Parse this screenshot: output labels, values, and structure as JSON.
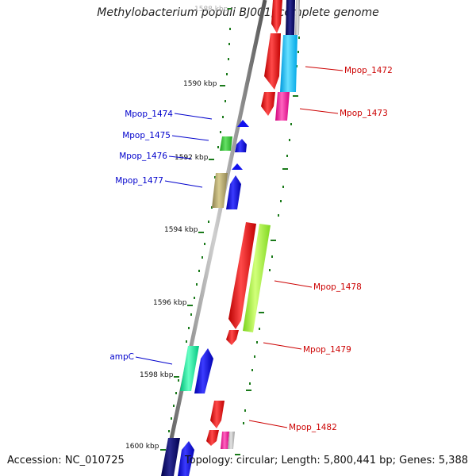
{
  "title": "Methylobacterium populi BJ001, complete genome",
  "footer": {
    "accession": "Accession: NC_010725",
    "summary": "Topology: circular; Length: 5,800,441 bp; Genes: 5,388"
  },
  "ruler_labels": [
    "1588 kbp",
    "1590 kbp",
    "1592 kbp",
    "1594 kbp",
    "1596 kbp",
    "1598 kbp",
    "1600 kbp"
  ],
  "gene_labels_left": [
    "Mpop_1474",
    "Mpop_1475",
    "Mpop_1476",
    "Mpop_1477",
    "ampC"
  ],
  "gene_labels_right": [
    "Mpop_1472",
    "Mpop_1473",
    "Mpop_1478",
    "Mpop_1479",
    "Mpop_1482"
  ],
  "colors": {
    "left_label": "#0000cc",
    "right_label": "#cc0000",
    "backbone": "#888888",
    "tick": "#1a7a1a"
  }
}
